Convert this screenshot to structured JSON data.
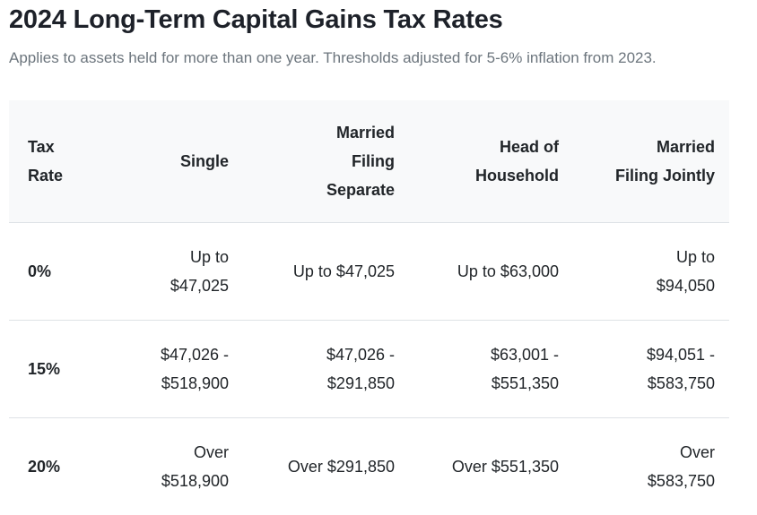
{
  "page": {
    "title": "2024 Long-Term Capital Gains Tax Rates",
    "subtitle": "Applies to assets held for more than one year. Thresholds adjusted for 5-6% inflation from 2023."
  },
  "table": {
    "columns": [
      {
        "id": "tax_rate",
        "label": "Tax\nRate"
      },
      {
        "id": "single",
        "label": "Single"
      },
      {
        "id": "married_filing_separate",
        "label": "Married\nFiling\nSeparate"
      },
      {
        "id": "head_of_household",
        "label": "Head of\nHousehold"
      },
      {
        "id": "married_filing_jointly",
        "label": "Married\nFiling Jointly"
      }
    ],
    "rows": [
      {
        "tax_rate": "0%",
        "single": "Up to\n$47,025",
        "married_filing_separate": "Up to $47,025",
        "head_of_household": "Up to $63,000",
        "married_filing_jointly": "Up to\n$94,050"
      },
      {
        "tax_rate": "15%",
        "single": "$47,026 -\n$518,900",
        "married_filing_separate": "$47,026 -\n$291,850",
        "head_of_household": "$63,001 -\n$551,350",
        "married_filing_jointly": "$94,051 -\n$583,750"
      },
      {
        "tax_rate": "20%",
        "single": "Over\n$518,900",
        "married_filing_separate": "Over $291,850",
        "head_of_household": "Over $551,350",
        "married_filing_jointly": "Over\n$583,750"
      }
    ]
  },
  "colors": {
    "header_background": "#f8f9fa",
    "divider": "#dee2e6",
    "text": "#212529",
    "muted_text": "#6c757d"
  }
}
